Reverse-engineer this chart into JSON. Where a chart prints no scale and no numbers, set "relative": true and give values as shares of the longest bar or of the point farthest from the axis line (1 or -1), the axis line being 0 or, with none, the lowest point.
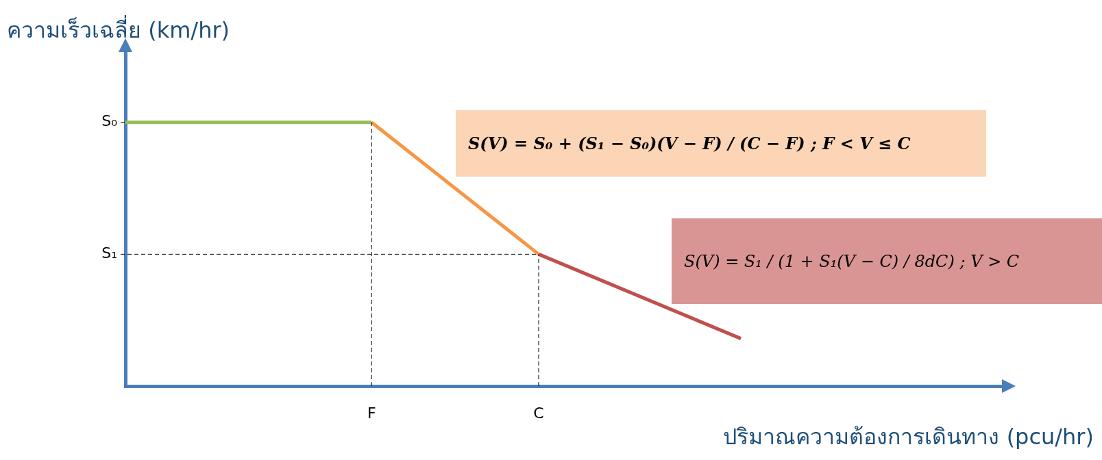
{
  "chart_data": {
    "type": "line",
    "relative": true,
    "xlabel": "ปริมาณความต้องการเดินทาง (pcu/hr)",
    "ylabel": "ความเร็วเฉลี่ย (km/hr)",
    "categories": [
      null,
      null,
      null,
      null,
      null,
      null,
      null,
      null,
      null,
      null,
      null,
      null,
      null,
      null,
      null,
      null,
      null,
      null,
      null,
      null,
      null,
      null,
      null,
      null,
      null,
      null,
      null,
      null,
      "F",
      null,
      null,
      null,
      null,
      null,
      null,
      null,
      null,
      null,
      null,
      null,
      null,
      null,
      null,
      null,
      null,
      null,
      null,
      "C",
      null,
      null,
      null,
      null,
      null,
      null,
      null,
      null,
      null,
      null,
      null,
      null,
      null,
      null,
      null,
      null,
      null,
      null,
      null,
      null,
      null,
      null,
      null,
      null,
      null,
      null,
      null,
      null,
      null,
      null,
      null,
      null,
      null,
      null,
      null,
      null,
      null,
      null,
      null,
      null,
      null,
      null,
      null,
      null,
      null,
      null,
      null,
      null,
      null,
      null,
      null,
      null,
      null
    ],
    "marker": "none",
    "legend": false,
    "series": [
      {
        "color": "#9bbb59",
        "values": [
          1,
          null,
          null,
          null,
          null,
          null,
          null,
          null,
          null,
          null,
          null,
          null,
          null,
          null,
          null,
          null,
          null,
          null,
          null,
          null,
          null,
          null,
          null,
          null,
          null,
          null,
          null,
          null,
          1,
          null,
          null,
          null,
          null,
          null,
          null,
          null,
          null,
          null,
          null,
          null,
          null,
          null,
          null,
          null,
          null,
          null,
          null,
          null,
          null,
          null,
          null,
          null,
          null,
          null,
          null,
          null,
          null,
          null,
          null,
          null,
          null,
          null,
          null,
          null,
          null,
          null,
          null,
          null,
          null,
          null,
          null,
          null,
          null,
          null,
          null,
          null,
          null,
          null,
          null,
          null,
          null,
          null,
          null,
          null,
          null,
          null,
          null,
          null,
          null,
          null,
          null,
          null,
          null,
          null,
          null,
          null,
          null,
          null,
          null,
          null,
          null
        ]
      },
      {
        "color": "#f79646",
        "values": [
          null,
          null,
          null,
          null,
          null,
          null,
          null,
          null,
          null,
          null,
          null,
          null,
          null,
          null,
          null,
          null,
          null,
          null,
          null,
          null,
          null,
          null,
          null,
          null,
          null,
          null,
          null,
          null,
          1,
          null,
          null,
          null,
          null,
          null,
          null,
          null,
          null,
          null,
          null,
          null,
          null,
          null,
          null,
          null,
          null,
          null,
          null,
          0.5,
          null,
          null,
          null,
          null,
          null,
          null,
          null,
          null,
          null,
          null,
          null,
          null,
          null,
          null,
          null,
          null,
          null,
          null,
          null,
          null,
          null,
          null,
          null,
          null,
          null,
          null,
          null,
          null,
          null,
          null,
          null,
          null,
          null,
          null,
          null,
          null,
          null,
          null,
          null,
          null,
          null,
          null,
          null,
          null,
          null,
          null,
          null,
          null,
          null,
          null,
          null,
          null,
          null
        ]
      },
      {
        "color": "#c0504d",
        "values": [
          null,
          null,
          null,
          null,
          null,
          null,
          null,
          null,
          null,
          null,
          null,
          null,
          null,
          null,
          null,
          null,
          null,
          null,
          null,
          null,
          null,
          null,
          null,
          null,
          null,
          null,
          null,
          null,
          null,
          null,
          null,
          null,
          null,
          null,
          null,
          null,
          null,
          null,
          null,
          null,
          null,
          null,
          null,
          null,
          null,
          null,
          null,
          0.5,
          null,
          null,
          null,
          null,
          null,
          null,
          null,
          null,
          null,
          null,
          null,
          null,
          null,
          null,
          null,
          null,
          null,
          null,
          null,
          null,
          null,
          null,
          0.18,
          null,
          null,
          null,
          null,
          null,
          null,
          null,
          null,
          null,
          null,
          null,
          null,
          null,
          null,
          null,
          null,
          null,
          null,
          null,
          null,
          null,
          null,
          null,
          null,
          null,
          null,
          null,
          null,
          null,
          null
        ]
      }
    ],
    "ref_lines": [
      {
        "axis": "y",
        "value": 1,
        "label": "S₀",
        "color": "#000000",
        "line_style": "dashed"
      },
      {
        "axis": "y",
        "value": 0.5,
        "label": "S₁",
        "color": "#000000",
        "line_style": "dashed"
      },
      {
        "axis": "x",
        "value": "F",
        "color": "#000000",
        "line_style": "dashed"
      },
      {
        "axis": "x",
        "value": "C",
        "color": "#000000",
        "line_style": "dashed"
      }
    ],
    "annotations": [
      "S(V) = S₀ + (S₁ − S₀)(V − F) / (C − F)     ; F < V ≤ C",
      "S(V) = S₁ / (1 + S₁(V − C) / 8dC)     ; V > C"
    ]
  }
}
